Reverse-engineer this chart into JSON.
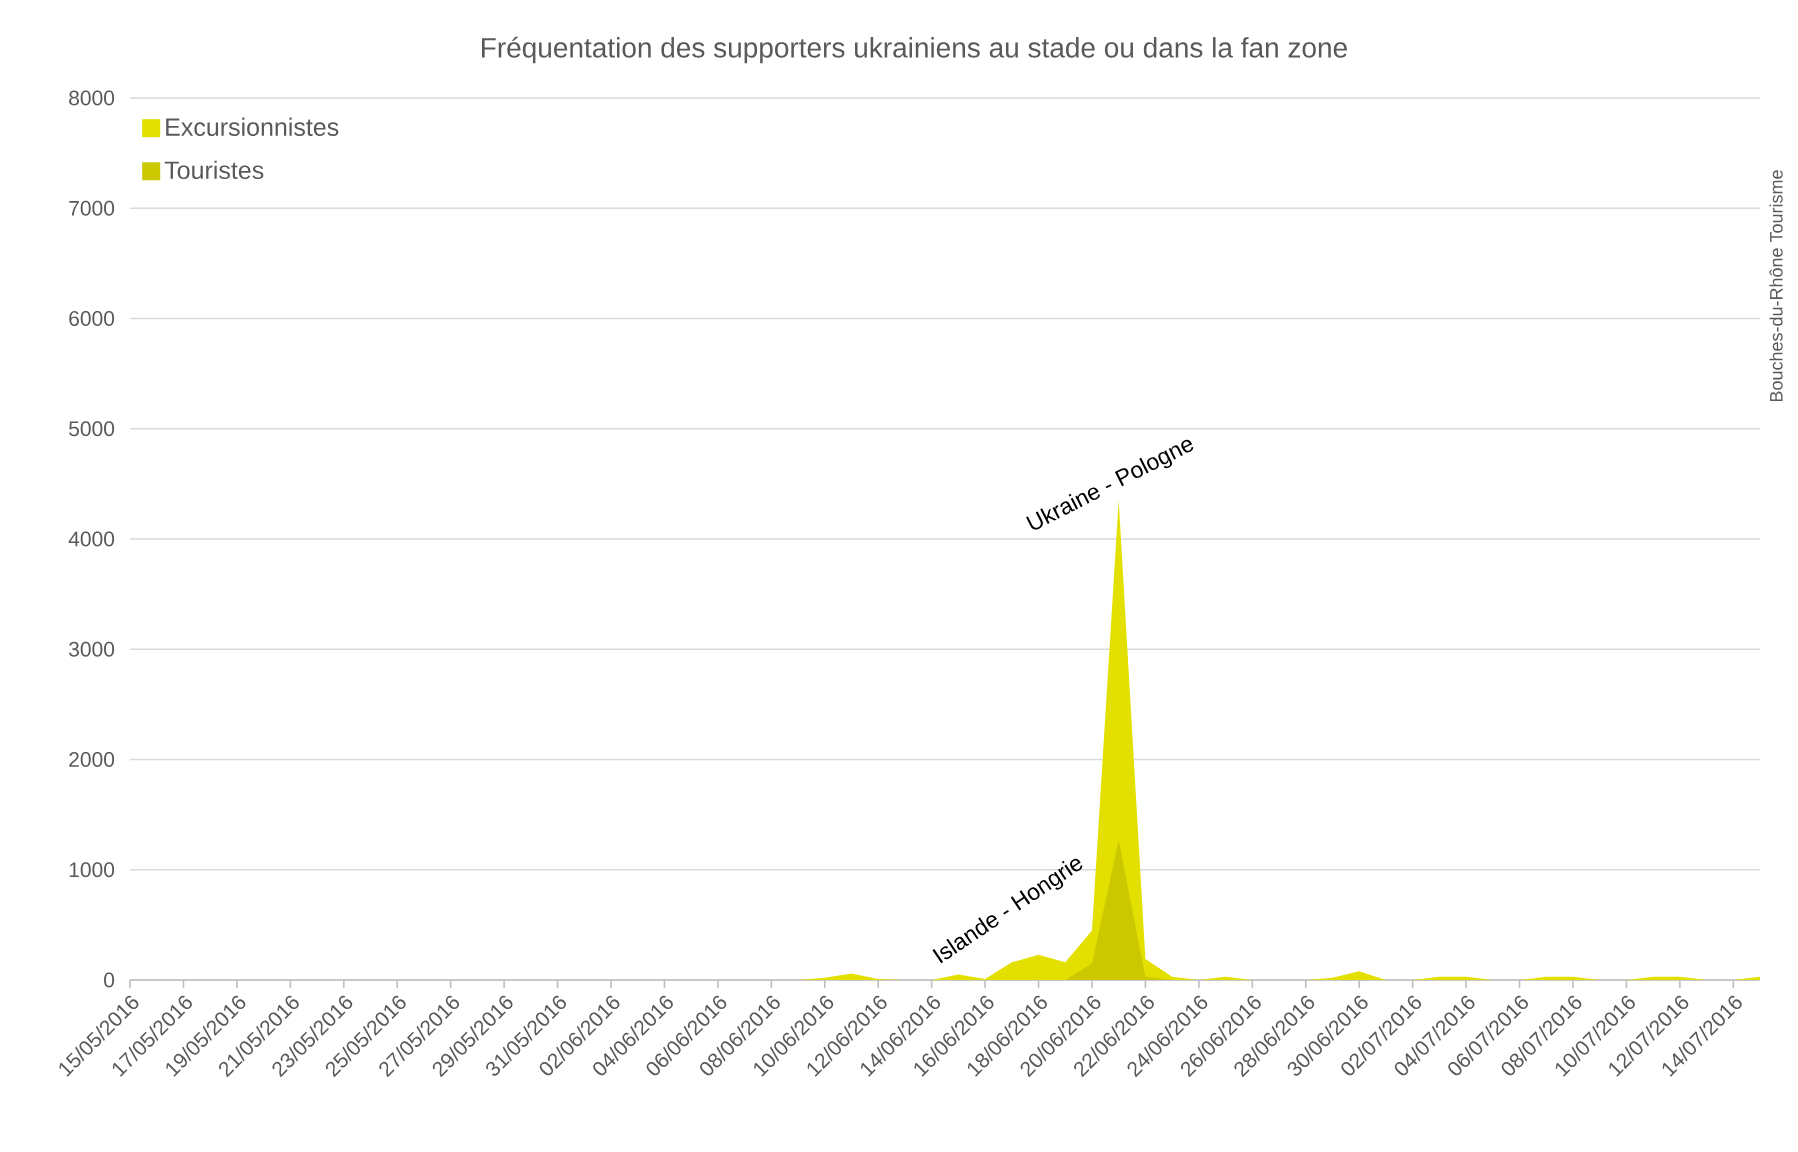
{
  "chart_data": {
    "type": "area",
    "title": "Fréquentation des supporters ukrainiens au stade ou dans la fan zone",
    "x": [
      "2016-05-15",
      "2016-05-16",
      "2016-05-17",
      "2016-05-18",
      "2016-05-19",
      "2016-05-20",
      "2016-05-21",
      "2016-05-22",
      "2016-05-23",
      "2016-05-24",
      "2016-05-25",
      "2016-05-26",
      "2016-05-27",
      "2016-05-28",
      "2016-05-29",
      "2016-05-30",
      "2016-05-31",
      "2016-06-01",
      "2016-06-02",
      "2016-06-03",
      "2016-06-04",
      "2016-06-05",
      "2016-06-06",
      "2016-06-07",
      "2016-06-08",
      "2016-06-09",
      "2016-06-10",
      "2016-06-11",
      "2016-06-12",
      "2016-06-13",
      "2016-06-14",
      "2016-06-15",
      "2016-06-16",
      "2016-06-17",
      "2016-06-18",
      "2016-06-19",
      "2016-06-20",
      "2016-06-21",
      "2016-06-22",
      "2016-06-23",
      "2016-06-24",
      "2016-06-25",
      "2016-06-26",
      "2016-06-27",
      "2016-06-28",
      "2016-06-29",
      "2016-06-30",
      "2016-07-01",
      "2016-07-02",
      "2016-07-03",
      "2016-07-04",
      "2016-07-05",
      "2016-07-06",
      "2016-07-07",
      "2016-07-08",
      "2016-07-09",
      "2016-07-10",
      "2016-07-11",
      "2016-07-12",
      "2016-07-13",
      "2016-07-14",
      "2016-07-15"
    ],
    "series": [
      {
        "name": "Excursionnistes",
        "color": "#e3e000",
        "values": [
          0,
          0,
          0,
          0,
          0,
          0,
          0,
          0,
          0,
          0,
          0,
          0,
          0,
          0,
          0,
          0,
          0,
          0,
          0,
          0,
          0,
          0,
          0,
          0,
          0,
          0,
          20,
          60,
          10,
          0,
          0,
          50,
          10,
          160,
          230,
          160,
          450,
          4350,
          190,
          30,
          0,
          30,
          0,
          0,
          0,
          20,
          80,
          0,
          0,
          30,
          30,
          0,
          0,
          30,
          30,
          0,
          0,
          30,
          30,
          0,
          0,
          30
        ]
      },
      {
        "name": "Touristes",
        "color": "#ccc800",
        "values": [
          0,
          0,
          0,
          0,
          0,
          0,
          0,
          0,
          0,
          0,
          0,
          0,
          0,
          0,
          0,
          0,
          0,
          0,
          0,
          0,
          0,
          0,
          0,
          0,
          0,
          0,
          0,
          0,
          0,
          0,
          0,
          0,
          0,
          0,
          0,
          0,
          150,
          1270,
          30,
          0,
          0,
          0,
          0,
          0,
          0,
          0,
          0,
          0,
          0,
          0,
          0,
          0,
          0,
          0,
          0,
          0,
          0,
          0,
          0,
          0,
          0,
          0
        ]
      }
    ],
    "xlim": [
      "2016-05-15",
      "2016-07-15"
    ],
    "xticks": [
      {
        "value": "2016-05-15",
        "label": "15/05/2016"
      },
      {
        "value": "2016-05-17",
        "label": "17/05/2016"
      },
      {
        "value": "2016-05-19",
        "label": "19/05/2016"
      },
      {
        "value": "2016-05-21",
        "label": "21/05/2016"
      },
      {
        "value": "2016-05-23",
        "label": "23/05/2016"
      },
      {
        "value": "2016-05-25",
        "label": "25/05/2016"
      },
      {
        "value": "2016-05-27",
        "label": "27/05/2016"
      },
      {
        "value": "2016-05-29",
        "label": "29/05/2016"
      },
      {
        "value": "2016-05-31",
        "label": "31/05/2016"
      },
      {
        "value": "2016-06-02",
        "label": "02/06/2016"
      },
      {
        "value": "2016-06-04",
        "label": "04/06/2016"
      },
      {
        "value": "2016-06-06",
        "label": "06/06/2016"
      },
      {
        "value": "2016-06-08",
        "label": "08/06/2016"
      },
      {
        "value": "2016-06-10",
        "label": "10/06/2016"
      },
      {
        "value": "2016-06-12",
        "label": "12/06/2016"
      },
      {
        "value": "2016-06-14",
        "label": "14/06/2016"
      },
      {
        "value": "2016-06-16",
        "label": "16/06/2016"
      },
      {
        "value": "2016-06-18",
        "label": "18/06/2016"
      },
      {
        "value": "2016-06-20",
        "label": "20/06/2016"
      },
      {
        "value": "2016-06-22",
        "label": "22/06/2016"
      },
      {
        "value": "2016-06-24",
        "label": "24/06/2016"
      },
      {
        "value": "2016-06-26",
        "label": "26/06/2016"
      },
      {
        "value": "2016-06-28",
        "label": "28/06/2016"
      },
      {
        "value": "2016-06-30",
        "label": "30/06/2016"
      },
      {
        "value": "2016-07-02",
        "label": "02/07/2016"
      },
      {
        "value": "2016-07-04",
        "label": "04/07/2016"
      },
      {
        "value": "2016-07-06",
        "label": "06/07/2016"
      },
      {
        "value": "2016-07-08",
        "label": "08/07/2016"
      },
      {
        "value": "2016-07-10",
        "label": "10/07/2016"
      },
      {
        "value": "2016-07-12",
        "label": "12/07/2016"
      },
      {
        "value": "2016-07-14",
        "label": "14/07/2016"
      }
    ],
    "ylim": [
      0,
      8000
    ],
    "yticks": [
      0,
      1000,
      2000,
      3000,
      4000,
      5000,
      6000,
      7000,
      8000
    ],
    "grid": "y",
    "legend": "top left",
    "annotations": [
      {
        "text": "Ukraine - Pologne",
        "x": "2016-06-21",
        "y": 4350
      },
      {
        "text": "Islande - Hongrie",
        "x": "2016-06-18",
        "y": 230
      },
      "Bouches-du-Rhône Tourisme"
    ]
  }
}
